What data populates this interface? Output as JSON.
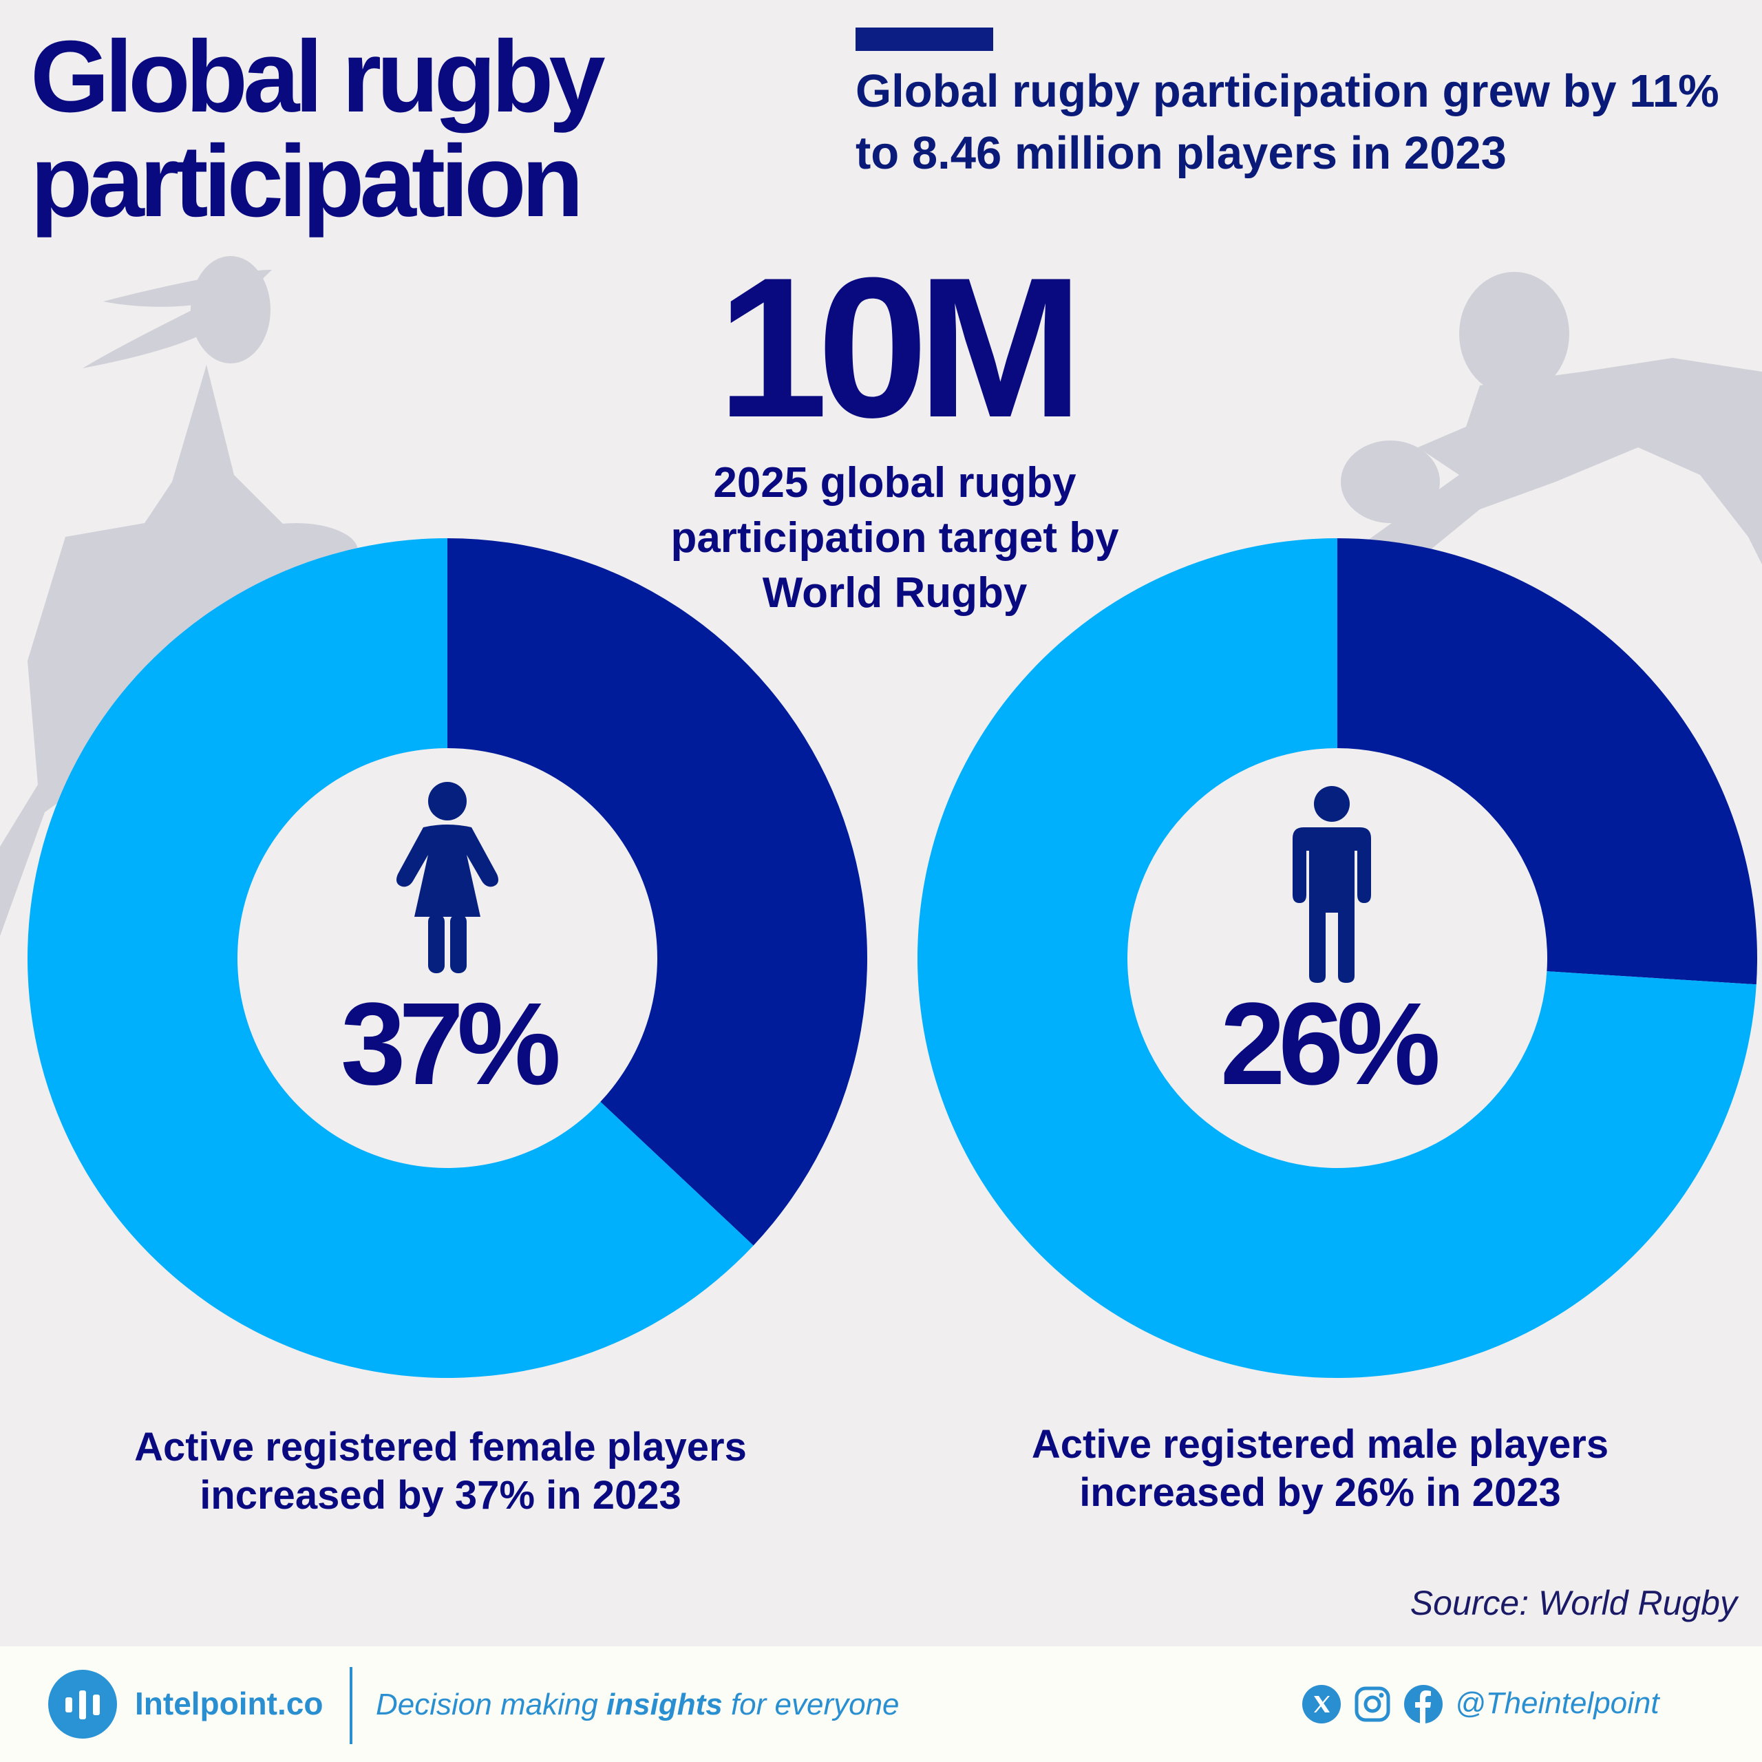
{
  "title": {
    "line1": "Global rugby",
    "line2": "participation"
  },
  "subtitle": "Global rugby participation grew by 11% to 8.46 million players in 2023",
  "highlight": {
    "value": "10M",
    "caption_line1": "2025 global rugby",
    "caption_line2": "participation target by",
    "caption_line3": "World Rugby"
  },
  "chart_data": [
    {
      "type": "pie",
      "variant": "donut",
      "icon": "female-person-icon",
      "values": [
        37,
        63
      ],
      "label": "37%",
      "caption_line1": "Active registered female players",
      "caption_line2": "increased by 37% in 2023"
    },
    {
      "type": "pie",
      "variant": "donut",
      "icon": "male-person-icon",
      "values": [
        26,
        74
      ],
      "label": "26%",
      "caption_line1": "Active registered male players",
      "caption_line2": "increased by 26% in 2023"
    }
  ],
  "colors": {
    "highlight_segment": "#001c9b",
    "remainder_segment": "#00b0fc",
    "text": "#0a0a80",
    "icon": "#06207f",
    "background": "#f0eeee",
    "silhouette": "#d0d0d8",
    "brand": "#2a8fd0"
  },
  "source": "Source: World Rugby",
  "footer": {
    "brand": "Intelpoint.co",
    "tagline_before": "Decision making ",
    "tagline_bold": "insights",
    "tagline_after": " for everyone",
    "social_icons": [
      "x-icon",
      "instagram-icon",
      "facebook-icon"
    ],
    "handle": "@Theintelpoint"
  }
}
